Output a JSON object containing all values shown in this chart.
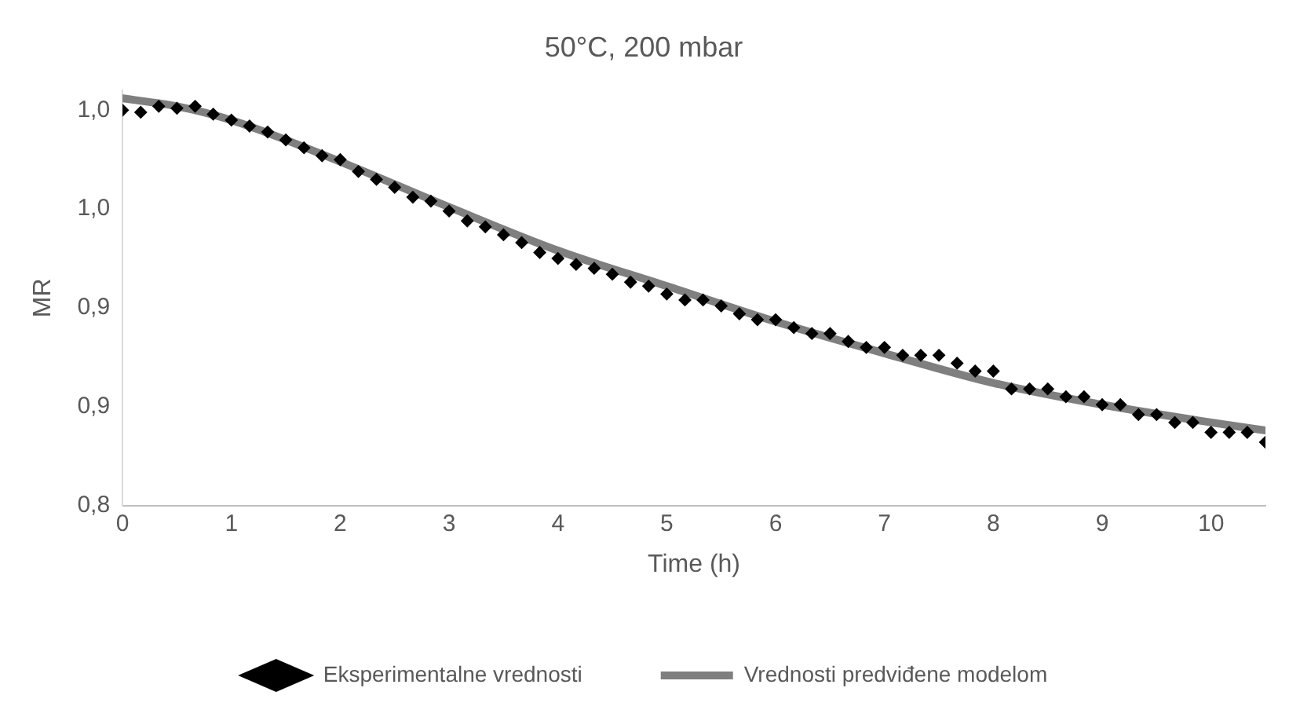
{
  "chart_data": {
    "type": "scatter",
    "title": "50°C, 200 mbar",
    "xlabel": "Time (h)",
    "ylabel": "MR",
    "xlim": [
      0,
      10.5
    ],
    "xticks": [
      0,
      1,
      2,
      3,
      4,
      5,
      6,
      7,
      8,
      9,
      10
    ],
    "ylim": [
      0.8,
      1.01
    ],
    "yticks": [
      {
        "value": 0.8,
        "label": "0,8"
      },
      {
        "value": 0.85,
        "label": "0,9"
      },
      {
        "value": 0.9,
        "label": "0,9"
      },
      {
        "value": 0.95,
        "label": "1,0"
      },
      {
        "value": 1.0,
        "label": "1,0"
      }
    ],
    "grid": false,
    "legend": "bottom",
    "series": [
      {
        "name": "Eksperimentalne vrednosti",
        "type": "scatter",
        "marker": "diamond",
        "color": "#000000",
        "x": [
          0,
          0.167,
          0.333,
          0.5,
          0.667,
          0.833,
          1,
          1.167,
          1.333,
          1.5,
          1.667,
          1.833,
          2,
          2.167,
          2.333,
          2.5,
          2.667,
          2.833,
          3,
          3.167,
          3.333,
          3.5,
          3.667,
          3.833,
          4,
          4.167,
          4.333,
          4.5,
          4.667,
          4.833,
          5,
          5.167,
          5.333,
          5.5,
          5.667,
          5.833,
          6,
          6.167,
          6.333,
          6.5,
          6.667,
          6.833,
          7,
          7.167,
          7.333,
          7.5,
          7.667,
          7.833,
          8,
          8.167,
          8.333,
          8.5,
          8.667,
          8.833,
          9,
          9.167,
          9.333,
          9.5,
          9.667,
          9.833,
          10,
          10.167,
          10.333,
          10.5
        ],
        "values": [
          1.0,
          0.999,
          1.002,
          1.001,
          1.002,
          0.998,
          0.995,
          0.992,
          0.989,
          0.985,
          0.981,
          0.977,
          0.975,
          0.969,
          0.965,
          0.961,
          0.956,
          0.954,
          0.949,
          0.944,
          0.941,
          0.937,
          0.933,
          0.928,
          0.925,
          0.922,
          0.92,
          0.917,
          0.913,
          0.911,
          0.907,
          0.904,
          0.904,
          0.901,
          0.897,
          0.894,
          0.894,
          0.89,
          0.887,
          0.887,
          0.883,
          0.88,
          0.88,
          0.876,
          0.876,
          0.876,
          0.872,
          0.868,
          0.868,
          0.859,
          0.859,
          0.859,
          0.855,
          0.855,
          0.851,
          0.851,
          0.846,
          0.846,
          0.842,
          0.842,
          0.837,
          0.837,
          0.837,
          0.832
        ]
      },
      {
        "name": "Vrednosti predviđene modelom",
        "type": "line",
        "marker": "none",
        "line_style": "solid",
        "color": "#7f7f7f",
        "x": [
          0,
          0.5,
          1,
          2,
          3,
          4,
          5,
          6,
          7,
          8,
          9,
          10,
          10.5
        ],
        "values": [
          1.006,
          1.002,
          0.995,
          0.974,
          0.951,
          0.929,
          0.911,
          0.893,
          0.877,
          0.862,
          0.851,
          0.842,
          0.838
        ]
      }
    ]
  }
}
